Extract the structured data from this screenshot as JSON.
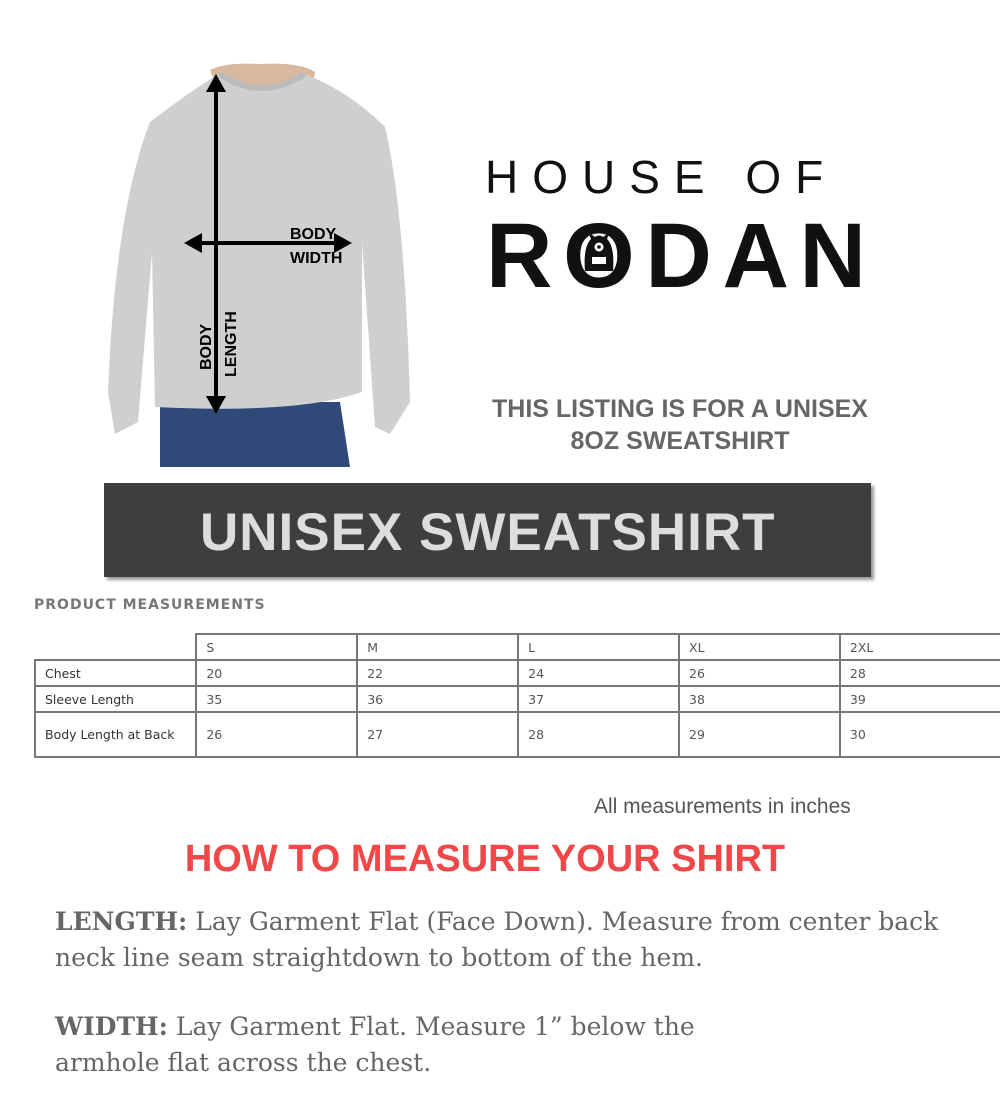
{
  "shirt_labels": {
    "width_line1": "BODY",
    "width_line2": "WIDTH",
    "length_line1": "BODY",
    "length_line2": "LENGTH"
  },
  "brand": {
    "line1": "HOUSE OF",
    "line2": "RODAN"
  },
  "listing": {
    "line1": "THIS LISTING IS FOR A UNISEX",
    "line2": "8OZ SWEATSHIRT"
  },
  "banner": "UNISEX SWEATSHIRT",
  "measurements": {
    "title": "PRODUCT MEASUREMENTS",
    "sizes": [
      "S",
      "M",
      "L",
      "XL",
      "2XL"
    ],
    "rows": [
      {
        "label": "Chest",
        "values": [
          "20",
          "22",
          "24",
          "26",
          "28"
        ]
      },
      {
        "label": "Sleeve Length",
        "values": [
          "35",
          "36",
          "37",
          "38",
          "39"
        ]
      },
      {
        "label": "Body Length at Back",
        "values": [
          "26",
          "27",
          "28",
          "29",
          "30"
        ]
      }
    ],
    "units_note": "All measurements in inches"
  },
  "howto": {
    "title": "HOW TO MEASURE YOUR SHIRT",
    "length_label": "LENGTH:",
    "length_text": "Lay Garment Flat (Face Down). Measure from center back neck line seam straightdown to bottom of the hem.",
    "width_label": "WIDTH:",
    "width_text": "Lay Garment Flat. Measure 1” below the armhole flat across the chest."
  },
  "colors": {
    "banner": "#3e3e3e",
    "howto_title": "#f04848",
    "shirt": "#cfcfcf"
  }
}
